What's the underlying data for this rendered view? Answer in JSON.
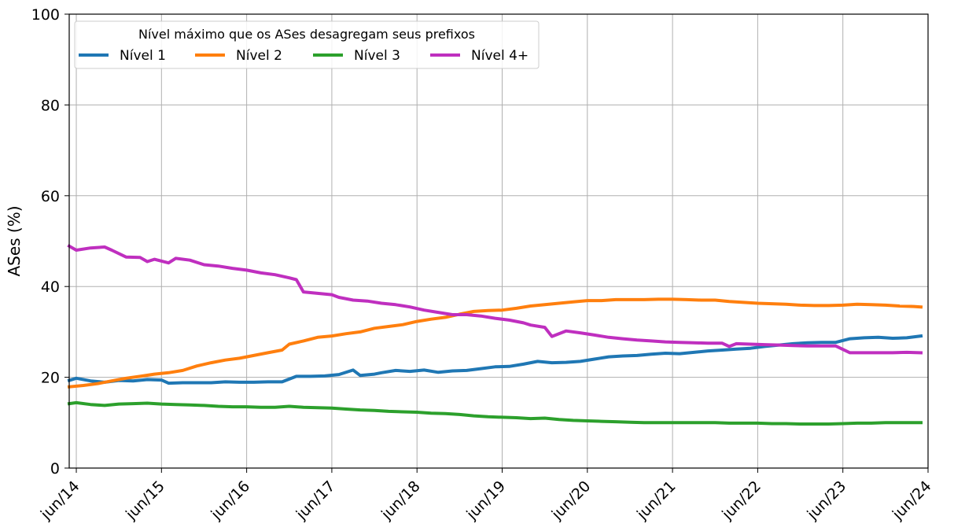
{
  "chart_data": {
    "type": "line",
    "title": "",
    "xlabel": "",
    "ylabel": "ASes (%)",
    "ylim": [
      0,
      100
    ],
    "yticks": [
      0,
      20,
      40,
      60,
      80,
      100
    ],
    "xtick_labels": [
      "jun/14",
      "jun/15",
      "jun/16",
      "jun/17",
      "jun/18",
      "jun/19",
      "jun/20",
      "jun/21",
      "jun/22",
      "jun/23",
      "jun/24"
    ],
    "x_range": [
      "2014-05",
      "2024-06"
    ],
    "grid": true,
    "legend": {
      "title": "Nível máximo que os ASes desagregam seus prefixos",
      "placement": "top-left"
    },
    "series": [
      {
        "name": "Nível 1",
        "color": "#1f77b4",
        "points": [
          [
            "2014-05",
            19.3
          ],
          [
            "2014-06",
            19.8
          ],
          [
            "2014-08",
            19.2
          ],
          [
            "2014-10",
            18.9
          ],
          [
            "2014-12",
            19.3
          ],
          [
            "2015-02",
            19.2
          ],
          [
            "2015-04",
            19.5
          ],
          [
            "2015-06",
            19.4
          ],
          [
            "2015-07",
            18.7
          ],
          [
            "2015-09",
            18.8
          ],
          [
            "2015-11",
            18.8
          ],
          [
            "2016-01",
            18.8
          ],
          [
            "2016-03",
            19.0
          ],
          [
            "2016-05",
            18.9
          ],
          [
            "2016-07",
            18.9
          ],
          [
            "2016-09",
            19.0
          ],
          [
            "2016-11",
            19.0
          ],
          [
            "2017-01",
            20.2
          ],
          [
            "2017-03",
            20.2
          ],
          [
            "2017-05",
            20.3
          ],
          [
            "2017-07",
            20.6
          ],
          [
            "2017-09",
            21.6
          ],
          [
            "2017-10",
            20.4
          ],
          [
            "2017-12",
            20.7
          ],
          [
            "2018-01",
            21.0
          ],
          [
            "2018-03",
            21.5
          ],
          [
            "2018-05",
            21.3
          ],
          [
            "2018-07",
            21.6
          ],
          [
            "2018-09",
            21.1
          ],
          [
            "2018-11",
            21.4
          ],
          [
            "2019-01",
            21.5
          ],
          [
            "2019-03",
            21.9
          ],
          [
            "2019-05",
            22.3
          ],
          [
            "2019-07",
            22.4
          ],
          [
            "2019-09",
            22.9
          ],
          [
            "2019-11",
            23.5
          ],
          [
            "2020-01",
            23.2
          ],
          [
            "2020-03",
            23.3
          ],
          [
            "2020-05",
            23.5
          ],
          [
            "2020-07",
            24.0
          ],
          [
            "2020-09",
            24.5
          ],
          [
            "2020-11",
            24.7
          ],
          [
            "2021-01",
            24.8
          ],
          [
            "2021-03",
            25.1
          ],
          [
            "2021-05",
            25.3
          ],
          [
            "2021-07",
            25.2
          ],
          [
            "2021-09",
            25.5
          ],
          [
            "2021-11",
            25.8
          ],
          [
            "2022-01",
            26.0
          ],
          [
            "2022-03",
            26.2
          ],
          [
            "2022-05",
            26.4
          ],
          [
            "2022-07",
            26.8
          ],
          [
            "2022-09",
            27.1
          ],
          [
            "2022-11",
            27.4
          ],
          [
            "2023-01",
            27.6
          ],
          [
            "2023-03",
            27.7
          ],
          [
            "2023-05",
            27.7
          ],
          [
            "2023-07",
            28.5
          ],
          [
            "2023-09",
            28.7
          ],
          [
            "2023-11",
            28.8
          ],
          [
            "2024-01",
            28.6
          ],
          [
            "2024-03",
            28.7
          ],
          [
            "2024-05",
            29.1
          ]
        ]
      },
      {
        "name": "Nível 2",
        "color": "#ff7f0e",
        "points": [
          [
            "2014-05",
            17.9
          ],
          [
            "2014-07",
            18.2
          ],
          [
            "2014-09",
            18.6
          ],
          [
            "2014-11",
            19.2
          ],
          [
            "2015-01",
            19.8
          ],
          [
            "2015-03",
            20.2
          ],
          [
            "2015-05",
            20.7
          ],
          [
            "2015-07",
            21.0
          ],
          [
            "2015-09",
            21.5
          ],
          [
            "2015-11",
            22.5
          ],
          [
            "2016-01",
            23.2
          ],
          [
            "2016-03",
            23.8
          ],
          [
            "2016-05",
            24.2
          ],
          [
            "2016-07",
            24.8
          ],
          [
            "2016-09",
            25.4
          ],
          [
            "2016-11",
            26.0
          ],
          [
            "2016-12",
            27.3
          ],
          [
            "2017-02",
            28.0
          ],
          [
            "2017-04",
            28.8
          ],
          [
            "2017-06",
            29.1
          ],
          [
            "2017-08",
            29.6
          ],
          [
            "2017-10",
            30.0
          ],
          [
            "2017-12",
            30.8
          ],
          [
            "2018-02",
            31.2
          ],
          [
            "2018-04",
            31.6
          ],
          [
            "2018-06",
            32.3
          ],
          [
            "2018-08",
            32.8
          ],
          [
            "2018-10",
            33.2
          ],
          [
            "2018-12",
            33.9
          ],
          [
            "2019-02",
            34.5
          ],
          [
            "2019-04",
            34.7
          ],
          [
            "2019-06",
            34.8
          ],
          [
            "2019-08",
            35.2
          ],
          [
            "2019-10",
            35.7
          ],
          [
            "2019-12",
            36.0
          ],
          [
            "2020-02",
            36.3
          ],
          [
            "2020-04",
            36.6
          ],
          [
            "2020-06",
            36.9
          ],
          [
            "2020-08",
            36.9
          ],
          [
            "2020-10",
            37.1
          ],
          [
            "2020-12",
            37.1
          ],
          [
            "2021-02",
            37.1
          ],
          [
            "2021-04",
            37.2
          ],
          [
            "2021-06",
            37.2
          ],
          [
            "2021-08",
            37.1
          ],
          [
            "2021-10",
            37.0
          ],
          [
            "2021-12",
            37.0
          ],
          [
            "2022-02",
            36.7
          ],
          [
            "2022-04",
            36.5
          ],
          [
            "2022-06",
            36.3
          ],
          [
            "2022-08",
            36.2
          ],
          [
            "2022-10",
            36.1
          ],
          [
            "2022-12",
            35.9
          ],
          [
            "2023-02",
            35.8
          ],
          [
            "2023-04",
            35.8
          ],
          [
            "2023-06",
            35.9
          ],
          [
            "2023-08",
            36.1
          ],
          [
            "2023-10",
            36.0
          ],
          [
            "2023-12",
            35.9
          ],
          [
            "2024-02",
            35.7
          ],
          [
            "2024-04",
            35.6
          ],
          [
            "2024-05",
            35.5
          ]
        ]
      },
      {
        "name": "Nível 3",
        "color": "#2ca02c",
        "points": [
          [
            "2014-05",
            14.2
          ],
          [
            "2014-06",
            14.4
          ],
          [
            "2014-08",
            14.0
          ],
          [
            "2014-10",
            13.8
          ],
          [
            "2014-12",
            14.1
          ],
          [
            "2015-02",
            14.2
          ],
          [
            "2015-04",
            14.3
          ],
          [
            "2015-06",
            14.1
          ],
          [
            "2015-08",
            14.0
          ],
          [
            "2015-10",
            13.9
          ],
          [
            "2015-12",
            13.8
          ],
          [
            "2016-02",
            13.6
          ],
          [
            "2016-04",
            13.5
          ],
          [
            "2016-06",
            13.5
          ],
          [
            "2016-08",
            13.4
          ],
          [
            "2016-10",
            13.4
          ],
          [
            "2016-12",
            13.6
          ],
          [
            "2017-02",
            13.4
          ],
          [
            "2017-04",
            13.3
          ],
          [
            "2017-06",
            13.2
          ],
          [
            "2017-08",
            13.0
          ],
          [
            "2017-10",
            12.8
          ],
          [
            "2017-12",
            12.7
          ],
          [
            "2018-02",
            12.5
          ],
          [
            "2018-04",
            12.4
          ],
          [
            "2018-06",
            12.3
          ],
          [
            "2018-08",
            12.1
          ],
          [
            "2018-10",
            12.0
          ],
          [
            "2018-12",
            11.8
          ],
          [
            "2019-02",
            11.5
          ],
          [
            "2019-04",
            11.3
          ],
          [
            "2019-06",
            11.2
          ],
          [
            "2019-08",
            11.1
          ],
          [
            "2019-10",
            10.9
          ],
          [
            "2019-12",
            11.0
          ],
          [
            "2020-02",
            10.7
          ],
          [
            "2020-04",
            10.5
          ],
          [
            "2020-06",
            10.4
          ],
          [
            "2020-08",
            10.3
          ],
          [
            "2020-10",
            10.2
          ],
          [
            "2020-12",
            10.1
          ],
          [
            "2021-02",
            10.0
          ],
          [
            "2021-04",
            10.0
          ],
          [
            "2021-06",
            10.0
          ],
          [
            "2021-08",
            10.0
          ],
          [
            "2021-10",
            10.0
          ],
          [
            "2021-12",
            10.0
          ],
          [
            "2022-02",
            9.9
          ],
          [
            "2022-04",
            9.9
          ],
          [
            "2022-06",
            9.9
          ],
          [
            "2022-08",
            9.8
          ],
          [
            "2022-10",
            9.8
          ],
          [
            "2022-12",
            9.7
          ],
          [
            "2023-02",
            9.7
          ],
          [
            "2023-04",
            9.7
          ],
          [
            "2023-06",
            9.8
          ],
          [
            "2023-08",
            9.9
          ],
          [
            "2023-10",
            9.9
          ],
          [
            "2023-12",
            10.0
          ],
          [
            "2024-02",
            10.0
          ],
          [
            "2024-05",
            10.0
          ]
        ]
      },
      {
        "name": "Nível 4+",
        "color": "#bf2fbf",
        "points": [
          [
            "2014-05",
            48.9
          ],
          [
            "2014-06",
            48.0
          ],
          [
            "2014-08",
            48.5
          ],
          [
            "2014-10",
            48.7
          ],
          [
            "2014-11",
            48.0
          ],
          [
            "2015-01",
            46.5
          ],
          [
            "2015-03",
            46.4
          ],
          [
            "2015-04",
            45.5
          ],
          [
            "2015-05",
            46.0
          ],
          [
            "2015-07",
            45.2
          ],
          [
            "2015-08",
            46.2
          ],
          [
            "2015-10",
            45.8
          ],
          [
            "2015-12",
            44.8
          ],
          [
            "2016-02",
            44.5
          ],
          [
            "2016-04",
            44.0
          ],
          [
            "2016-06",
            43.6
          ],
          [
            "2016-08",
            43.0
          ],
          [
            "2016-10",
            42.6
          ],
          [
            "2016-12",
            41.9
          ],
          [
            "2017-01",
            41.5
          ],
          [
            "2017-02",
            38.8
          ],
          [
            "2017-04",
            38.5
          ],
          [
            "2017-06",
            38.2
          ],
          [
            "2017-07",
            37.6
          ],
          [
            "2017-09",
            37.0
          ],
          [
            "2017-11",
            36.8
          ],
          [
            "2018-01",
            36.3
          ],
          [
            "2018-03",
            36.0
          ],
          [
            "2018-05",
            35.5
          ],
          [
            "2018-07",
            34.8
          ],
          [
            "2018-09",
            34.3
          ],
          [
            "2018-11",
            33.8
          ],
          [
            "2019-01",
            33.8
          ],
          [
            "2019-03",
            33.5
          ],
          [
            "2019-05",
            33.0
          ],
          [
            "2019-07",
            32.6
          ],
          [
            "2019-09",
            32.0
          ],
          [
            "2019-10",
            31.5
          ],
          [
            "2019-12",
            31.0
          ],
          [
            "2020-01",
            29.0
          ],
          [
            "2020-03",
            30.2
          ],
          [
            "2020-05",
            29.8
          ],
          [
            "2020-07",
            29.3
          ],
          [
            "2020-09",
            28.8
          ],
          [
            "2020-11",
            28.5
          ],
          [
            "2021-01",
            28.2
          ],
          [
            "2021-03",
            28.0
          ],
          [
            "2021-05",
            27.8
          ],
          [
            "2021-07",
            27.7
          ],
          [
            "2021-09",
            27.6
          ],
          [
            "2021-11",
            27.5
          ],
          [
            "2022-01",
            27.5
          ],
          [
            "2022-02",
            26.8
          ],
          [
            "2022-03",
            27.4
          ],
          [
            "2022-05",
            27.3
          ],
          [
            "2022-07",
            27.2
          ],
          [
            "2022-09",
            27.1
          ],
          [
            "2022-11",
            27.0
          ],
          [
            "2023-01",
            26.9
          ],
          [
            "2023-03",
            26.9
          ],
          [
            "2023-05",
            26.9
          ],
          [
            "2023-07",
            25.4
          ],
          [
            "2023-09",
            25.4
          ],
          [
            "2023-11",
            25.4
          ],
          [
            "2024-01",
            25.4
          ],
          [
            "2024-03",
            25.5
          ],
          [
            "2024-05",
            25.4
          ]
        ]
      }
    ]
  }
}
